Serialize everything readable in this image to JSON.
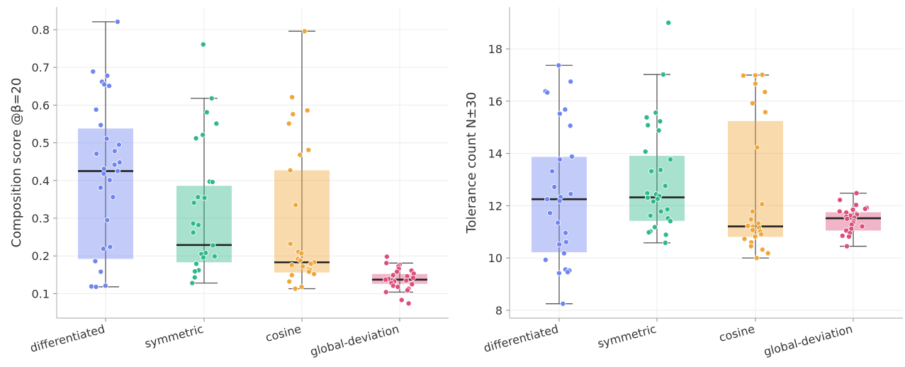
{
  "colors": {
    "differentiated": "#6f86f0",
    "symmetric": "#2fb98a",
    "cosine": "#f0a73a",
    "global-deviation": "#dc4f7b"
  },
  "chart_data": [
    {
      "type": "box",
      "title": "",
      "xlabel": "",
      "ylabel": "Composition score @β=20",
      "ylim": [
        0.035,
        0.86
      ],
      "yticks": [
        0.1,
        0.2,
        0.3,
        0.4,
        0.5,
        0.6,
        0.7,
        0.8
      ],
      "grid": true,
      "categories": [
        "differentiated",
        "symmetric",
        "cosine",
        "global-deviation"
      ],
      "boxes": [
        {
          "category": "differentiated",
          "q1": 0.192,
          "median": 0.425,
          "q3": 0.538,
          "whisker_low": 0.118,
          "whisker_high": 0.821
        },
        {
          "category": "symmetric",
          "q1": 0.183,
          "median": 0.229,
          "q3": 0.386,
          "whisker_low": 0.128,
          "whisker_high": 0.618
        },
        {
          "category": "cosine",
          "q1": 0.156,
          "median": 0.183,
          "q3": 0.427,
          "whisker_low": 0.113,
          "whisker_high": 0.796
        },
        {
          "category": "global-deviation",
          "q1": 0.126,
          "median": 0.137,
          "q3": 0.152,
          "whisker_low": 0.104,
          "whisker_high": 0.181
        }
      ],
      "points": [
        {
          "category": "differentiated",
          "values": [
            0.821,
            0.689,
            0.678,
            0.662,
            0.655,
            0.651,
            0.588,
            0.547,
            0.511,
            0.495,
            0.478,
            0.471,
            0.448,
            0.442,
            0.431,
            0.425,
            0.418,
            0.401,
            0.381,
            0.356,
            0.295,
            0.224,
            0.219,
            0.186,
            0.158,
            0.121,
            0.119,
            0.118
          ]
        },
        {
          "category": "symmetric",
          "values": [
            0.761,
            0.618,
            0.581,
            0.551,
            0.521,
            0.512,
            0.397,
            0.396,
            0.356,
            0.354,
            0.341,
            0.286,
            0.282,
            0.262,
            0.228,
            0.208,
            0.205,
            0.199,
            0.196,
            0.179,
            0.162,
            0.159,
            0.143,
            0.128
          ]
        },
        {
          "category": "cosine",
          "values": [
            0.796,
            0.621,
            0.586,
            0.576,
            0.551,
            0.481,
            0.468,
            0.427,
            0.335,
            0.232,
            0.211,
            0.207,
            0.192,
            0.188,
            0.183,
            0.179,
            0.176,
            0.172,
            0.166,
            0.163,
            0.158,
            0.152,
            0.149,
            0.132,
            0.118,
            0.113
          ]
        },
        {
          "category": "global-deviation",
          "values": [
            0.198,
            0.181,
            0.176,
            0.172,
            0.166,
            0.161,
            0.158,
            0.153,
            0.149,
            0.146,
            0.142,
            0.139,
            0.137,
            0.135,
            0.132,
            0.128,
            0.125,
            0.121,
            0.118,
            0.113,
            0.109,
            0.104,
            0.083,
            0.074
          ]
        }
      ]
    },
    {
      "type": "box",
      "title": "",
      "xlabel": "",
      "ylabel": "Tolerance count N±30",
      "ylim": [
        7.7,
        19.6
      ],
      "yticks": [
        8,
        10,
        12,
        14,
        16,
        18
      ],
      "grid": true,
      "categories": [
        "differentiated",
        "symmetric",
        "cosine",
        "global-deviation"
      ],
      "boxes": [
        {
          "category": "differentiated",
          "q1": 10.22,
          "median": 12.25,
          "q3": 13.87,
          "whisker_low": 8.25,
          "whisker_high": 17.37
        },
        {
          "category": "symmetric",
          "q1": 11.42,
          "median": 12.32,
          "q3": 13.91,
          "whisker_low": 10.58,
          "whisker_high": 17.02
        },
        {
          "category": "cosine",
          "q1": 10.81,
          "median": 11.21,
          "q3": 15.24,
          "whisker_low": 10.0,
          "whisker_high": 17.0
        },
        {
          "category": "global-deviation",
          "q1": 11.05,
          "median": 11.52,
          "q3": 11.75,
          "whisker_low": 10.45,
          "whisker_high": 12.48
        }
      ],
      "points": [
        {
          "category": "differentiated",
          "values": [
            17.37,
            16.75,
            16.38,
            16.33,
            15.68,
            15.52,
            15.06,
            13.88,
            13.77,
            13.32,
            12.72,
            12.45,
            12.33,
            12.25,
            12.18,
            11.72,
            11.35,
            10.96,
            10.61,
            10.52,
            10.18,
            9.93,
            9.56,
            9.52,
            9.46,
            9.42,
            8.25
          ]
        },
        {
          "category": "symmetric",
          "values": [
            19.0,
            17.02,
            15.56,
            15.38,
            15.23,
            15.08,
            14.88,
            14.07,
            13.77,
            13.37,
            13.32,
            12.76,
            12.48,
            12.44,
            12.37,
            12.31,
            12.26,
            12.16,
            11.86,
            11.78,
            11.62,
            11.52,
            11.41,
            11.18,
            11.02,
            10.98,
            10.89,
            10.58
          ]
        },
        {
          "category": "cosine",
          "values": [
            17.01,
            17.0,
            16.99,
            16.98,
            16.67,
            16.35,
            15.92,
            15.58,
            14.23,
            12.06,
            11.78,
            11.48,
            11.32,
            11.23,
            11.2,
            11.16,
            11.07,
            11.02,
            10.91,
            10.82,
            10.73,
            10.6,
            10.45,
            10.32,
            10.18,
            10.0
          ]
        },
        {
          "category": "global-deviation",
          "values": [
            12.48,
            12.22,
            12.03,
            11.92,
            11.88,
            11.85,
            11.78,
            11.74,
            11.7,
            11.66,
            11.62,
            11.58,
            11.54,
            11.5,
            11.42,
            11.35,
            11.28,
            11.21,
            11.12,
            11.05,
            10.95,
            10.85,
            10.82,
            10.45
          ]
        }
      ]
    }
  ]
}
